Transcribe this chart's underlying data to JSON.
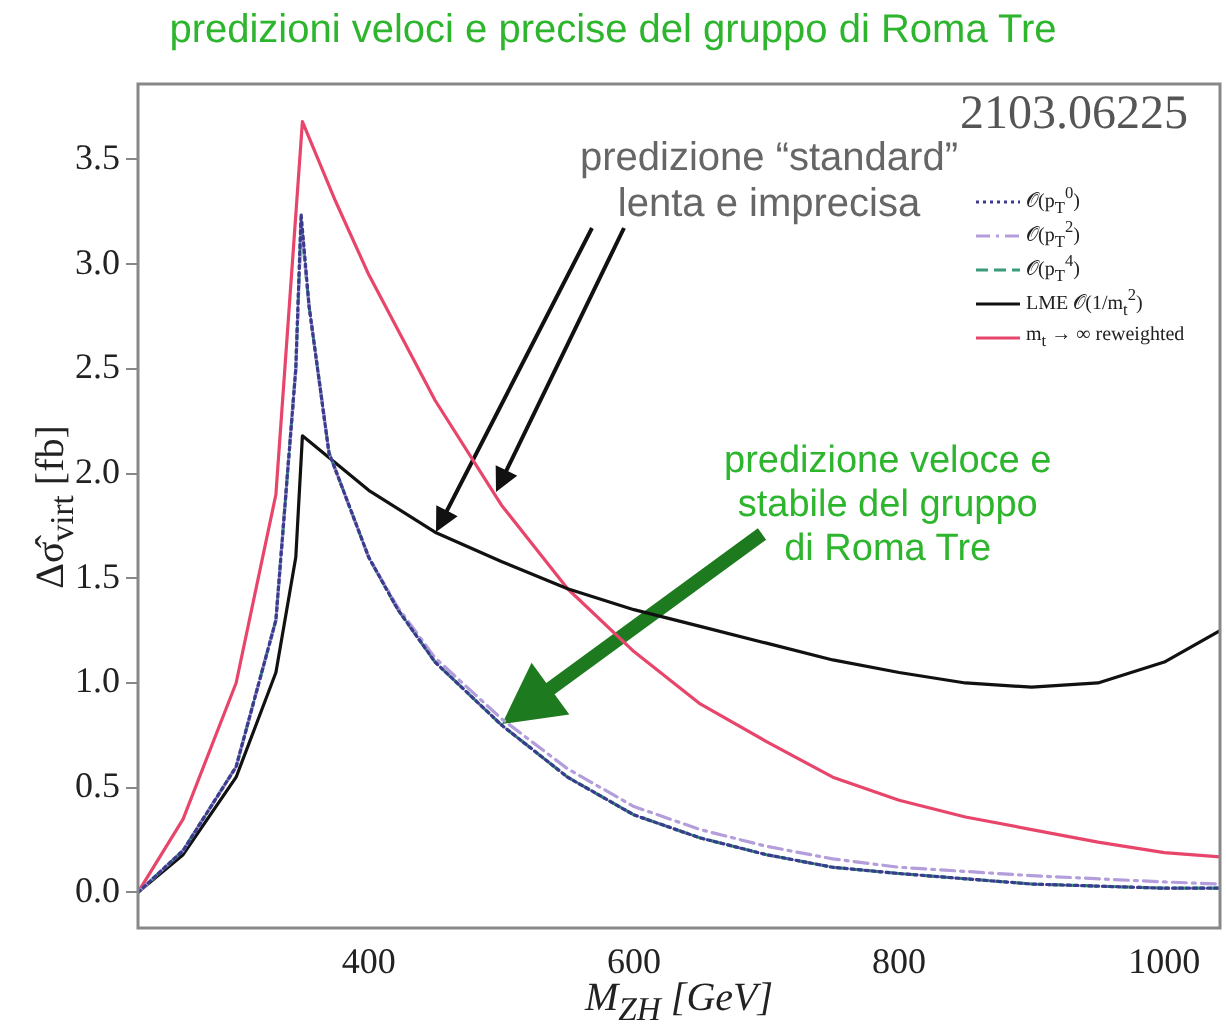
{
  "chart_data": {
    "type": "line",
    "title": "predizioni veloci e precise del gruppo di Roma Tre",
    "xlabel": "M$_{ZH}$ [GeV]",
    "ylabel": "Δσ̂$_{virt}$ [fb]",
    "annotations": [
      "2103.06225",
      "predizione “standard”\nlenta e imprecisa",
      "predizione veloce e\nstabile del gruppo\ndi Roma Tre"
    ],
    "xlim": [
      226,
      1042
    ],
    "ylim": [
      -0.17,
      3.86
    ],
    "xticks": [
      400,
      600,
      800,
      1000
    ],
    "yticks": [
      {
        "value": 0,
        "label": "0.0"
      },
      {
        "value": 0.5,
        "label": "0.5"
      },
      {
        "value": 1,
        "label": "1.0"
      },
      {
        "value": 1.5,
        "label": "1.5"
      },
      {
        "value": 2,
        "label": "2.0"
      },
      {
        "value": 2.5,
        "label": "2.5"
      },
      {
        "value": 3,
        "label": "3.0"
      },
      {
        "value": 3.5,
        "label": "3.5"
      }
    ],
    "grid": false,
    "legend": "top right",
    "marker": "none",
    "series": [
      {
        "name": "𝒪(p$_{T}$$^{0}$)",
        "color": "#3b3b8f",
        "line_style": "dotted",
        "x": [
          226,
          260,
          300,
          330,
          345,
          349,
          355,
          370,
          400,
          422,
          450,
          500,
          550,
          600,
          650,
          700,
          750,
          800,
          900,
          1000,
          1042
        ],
        "values": [
          0,
          0.2,
          0.6,
          1.3,
          2.5,
          3.24,
          2.8,
          2.1,
          1.6,
          1.35,
          1.1,
          0.8,
          0.55,
          0.37,
          0.26,
          0.18,
          0.12,
          0.09,
          0.04,
          0.02,
          0.02
        ]
      },
      {
        "name": "𝒪(p$_{T}$$^{2}$)",
        "color": "#b39ddb",
        "line_style": "dashdot",
        "x": [
          226,
          260,
          300,
          330,
          345,
          349,
          355,
          370,
          400,
          422,
          450,
          500,
          550,
          600,
          650,
          700,
          750,
          800,
          900,
          1000,
          1042
        ],
        "values": [
          0,
          0.2,
          0.6,
          1.3,
          2.5,
          3.2,
          2.8,
          2.1,
          1.6,
          1.36,
          1.12,
          0.83,
          0.59,
          0.41,
          0.3,
          0.22,
          0.16,
          0.12,
          0.08,
          0.05,
          0.04
        ]
      },
      {
        "name": "𝒪(p$_{T}$$^{4}$)",
        "color": "#3a9a7a",
        "line_style": "dashed",
        "x": [
          226,
          260,
          300,
          330,
          345,
          349,
          355,
          370,
          400,
          422,
          450,
          500,
          550,
          600,
          650,
          700,
          750,
          800,
          900,
          1000,
          1042
        ],
        "values": [
          0,
          0.2,
          0.6,
          1.3,
          2.5,
          3.2,
          2.8,
          2.1,
          1.6,
          1.35,
          1.1,
          0.8,
          0.55,
          0.37,
          0.26,
          0.18,
          0.12,
          0.09,
          0.04,
          0.02,
          0.02
        ]
      },
      {
        "name": "LME 𝒪(1/m$_{t}$$^{2}$)",
        "color": "#111111",
        "line_style": "solid",
        "x": [
          226,
          260,
          300,
          330,
          345,
          350,
          400,
          450,
          500,
          550,
          600,
          650,
          700,
          750,
          800,
          850,
          900,
          950,
          1000,
          1042
        ],
        "values": [
          0,
          0.18,
          0.55,
          1.05,
          1.6,
          2.18,
          1.92,
          1.72,
          1.58,
          1.45,
          1.35,
          1.27,
          1.19,
          1.11,
          1.05,
          1.0,
          0.98,
          1.0,
          1.1,
          1.25
        ]
      },
      {
        "name": "m$_{t}$ → ∞ reweighted",
        "color": "#e8456b",
        "line_style": "solid",
        "x": [
          226,
          260,
          300,
          330,
          350,
          375,
          400,
          450,
          500,
          550,
          600,
          650,
          700,
          750,
          800,
          850,
          900,
          950,
          1000,
          1042
        ],
        "values": [
          0,
          0.35,
          1.0,
          1.9,
          3.68,
          3.3,
          2.95,
          2.35,
          1.85,
          1.45,
          1.15,
          0.9,
          0.72,
          0.55,
          0.44,
          0.36,
          0.3,
          0.24,
          0.19,
          0.17
        ]
      }
    ]
  }
}
